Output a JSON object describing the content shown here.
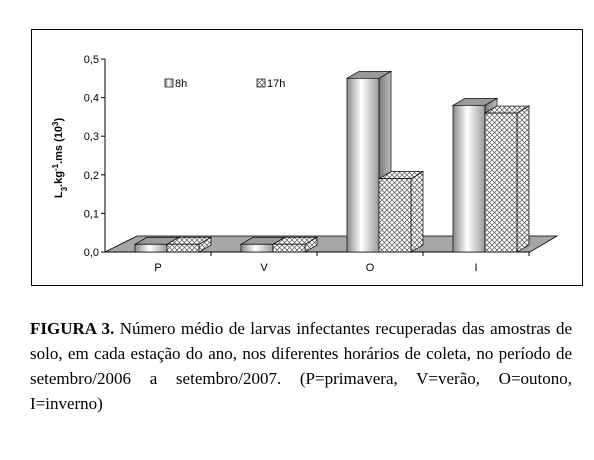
{
  "chart_data": {
    "type": "bar",
    "categories": [
      "P",
      "V",
      "O",
      "I"
    ],
    "series": [
      {
        "name": "8h",
        "values": [
          0.02,
          0.02,
          0.45,
          0.38
        ]
      },
      {
        "name": "17h",
        "values": [
          0.02,
          0.02,
          0.19,
          0.36
        ]
      }
    ],
    "ylabel": "L3.kg-1.ms (10³)",
    "ylim": [
      0,
      0.5
    ],
    "yticks": [
      "0,0",
      "0,1",
      "0,2",
      "0,3",
      "0,4",
      "0,5"
    ],
    "legend_placement": "top-left inside plot",
    "grid": false
  },
  "caption": {
    "figure_label": "FIGURA 3.",
    "text": " Número médio de larvas infectantes recuperadas das amostras de solo, em cada estação do ano, nos diferentes horários de coleta, no período de setembro/2006 a setembro/2007. (P=primavera, V=verão, O=outono, I=inverno)"
  },
  "colors": {
    "series_8h": "#bdbdbd",
    "series_17h": "#ffffff",
    "floor": "#a6a6a6"
  }
}
